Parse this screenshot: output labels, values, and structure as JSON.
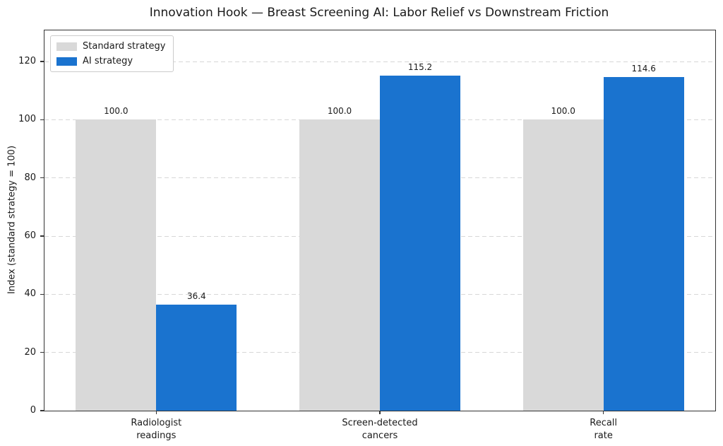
{
  "chart_data": {
    "type": "bar",
    "title": "Innovation Hook — Breast Screening AI: Labor Relief vs Downstream Friction",
    "xlabel": "",
    "ylabel": "Index (standard strategy = 100)",
    "categories": [
      "Radiologist\nreadings",
      "Screen-detected\ncancers",
      "Recall\nrate"
    ],
    "series": [
      {
        "name": "Standard strategy",
        "color": "#d9d9d9",
        "values": [
          100.0,
          100.0,
          100.0
        ]
      },
      {
        "name": "AI strategy",
        "color": "#1a73cf",
        "values": [
          36.4,
          115.2,
          114.6
        ]
      }
    ],
    "bar_value_labels": [
      [
        "100.0",
        "100.0",
        "100.0"
      ],
      [
        "36.4",
        "115.2",
        "114.6"
      ]
    ],
    "yticks": [
      0,
      20,
      40,
      60,
      80,
      100,
      120
    ],
    "ylim": [
      0,
      130.7
    ],
    "grid": true,
    "grid_style": "dashed",
    "legend_position": "upper left",
    "bar_width": 0.36,
    "colors": {
      "standard_bar": "#d9d9d9",
      "ai_bar": "#1a73cf",
      "text": "#1a1a1a",
      "spine": "#333333",
      "gridline": "#d7d7d7",
      "background": "#ffffff"
    }
  }
}
